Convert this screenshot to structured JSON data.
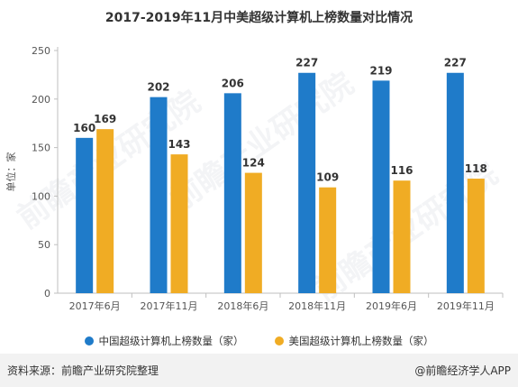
{
  "title": "2017-2019年11月中美超级计算机上榜数量对比情况",
  "ylabel": "单位：家",
  "footer": {
    "source": "资料来源：前瞻产业研究院整理",
    "brand": "@前瞻经济学人APP"
  },
  "watermark": "前瞻产业研究院",
  "colors": {
    "china": "#1f7bc9",
    "usa": "#f0ac24"
  },
  "chart_data": {
    "type": "bar",
    "title": "2017-2019年11月中美超级计算机上榜数量对比情况",
    "xlabel": "",
    "ylabel": "单位：家",
    "categories": [
      "2017年6月",
      "2017年11月",
      "2018年6月",
      "2018年11月",
      "2019年6月",
      "2019年11月"
    ],
    "series": [
      {
        "name": "中国超级计算机上榜数量（家）",
        "values": [
          160,
          202,
          206,
          227,
          219,
          227
        ]
      },
      {
        "name": "美国超级计算机上榜数量（家）",
        "values": [
          169,
          143,
          124,
          109,
          116,
          118
        ]
      }
    ],
    "ylim": [
      0,
      250
    ],
    "yticks": [
      0,
      50,
      100,
      150,
      200,
      250
    ],
    "grid": false,
    "legend": "bottom"
  }
}
